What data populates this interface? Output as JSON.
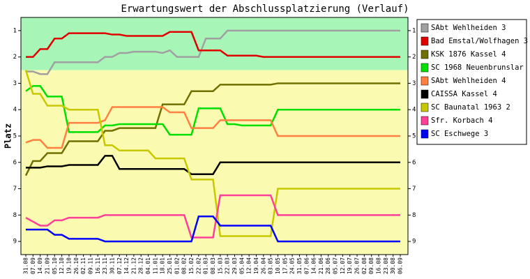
{
  "chart_data": {
    "type": "line",
    "title": "Erwartungswert der Abschlussplatzierung (Verlauf)",
    "y_label": "Platz",
    "categories": [
      "31.08",
      "07.09",
      "14.09",
      "21.09",
      "05.10",
      "12.10",
      "19.10",
      "26.10",
      "02.11",
      "09.11",
      "16.11",
      "23.11",
      "30.11",
      "07.12",
      "14.12",
      "21.12",
      "28.12",
      "04.01",
      "11.01",
      "18.01",
      "25.01",
      "01.02",
      "08.02",
      "15.02",
      "22.02",
      "01.03",
      "08.03",
      "15.03",
      "22.03",
      "29.03",
      "05.04",
      "12.04",
      "19.04",
      "26.04",
      "03.05",
      "10.05",
      "17.05",
      "24.05",
      "31.05",
      "07.06",
      "14.06",
      "21.06",
      "28.06",
      "05.07",
      "12.07",
      "19.07",
      "26.07",
      "02.08",
      "09.08",
      "16.08",
      "23.08",
      "30.08",
      "06.09"
    ],
    "ylim": [
      9.5,
      0.5
    ],
    "yticks": [
      1,
      2,
      3,
      4,
      5,
      6,
      7,
      8,
      9
    ],
    "bands": [
      {
        "from": 0.5,
        "to": 2.5,
        "color": "#a8f5b8"
      },
      {
        "from": 2.5,
        "to": 9.5,
        "color": "#fafab0"
      }
    ],
    "legend": "right",
    "series": [
      {
        "name": "SAbt Wehlheiden 3",
        "color": "#a0a0a0",
        "values": [
          2.55,
          2.55,
          2.65,
          2.65,
          2.2,
          2.2,
          2.2,
          2.2,
          2.2,
          2.2,
          2.2,
          2.0,
          2.0,
          1.85,
          1.85,
          1.8,
          1.8,
          1.8,
          1.8,
          1.85,
          1.75,
          2.0,
          2.0,
          2.0,
          2.0,
          1.3,
          1.3,
          1.3,
          1,
          1,
          1,
          1,
          1,
          1,
          1,
          1,
          1,
          1,
          1,
          1,
          1,
          1,
          1,
          1,
          1,
          1,
          1,
          1,
          1,
          1,
          1,
          1,
          1
        ]
      },
      {
        "name": "Bad Emstal/Wolfhagen 3",
        "color": "#e00000",
        "values": [
          2.0,
          2.0,
          1.7,
          1.7,
          1.3,
          1.3,
          1.1,
          1.1,
          1.1,
          1.1,
          1.1,
          1.1,
          1.15,
          1.15,
          1.2,
          1.2,
          1.2,
          1.2,
          1.2,
          1.2,
          1.05,
          1.05,
          1.05,
          1.05,
          1.75,
          1.75,
          1.75,
          1.75,
          1.95,
          1.95,
          1.95,
          1.95,
          1.95,
          2.0,
          2.0,
          2.0,
          2.0,
          2.0,
          2.0,
          2.0,
          2.0,
          2.0,
          2.0,
          2.0,
          2.0,
          2.0,
          2.0,
          2.0,
          2.0,
          2.0,
          2.0,
          2.0,
          2.0
        ]
      },
      {
        "name": "KSK 1876 Kassel 4",
        "color": "#707000",
        "values": [
          6.5,
          5.95,
          5.95,
          5.65,
          5.65,
          5.65,
          5.2,
          5.2,
          5.2,
          5.2,
          5.2,
          4.8,
          4.8,
          4.7,
          4.7,
          4.7,
          4.7,
          4.7,
          4.7,
          3.8,
          3.8,
          3.8,
          3.8,
          3.3,
          3.3,
          3.3,
          3.3,
          3.05,
          3.05,
          3.05,
          3.05,
          3.05,
          3.05,
          3.05,
          3.05,
          3.0,
          3.0,
          3.0,
          3.0,
          3.0,
          3.0,
          3.0,
          3.0,
          3.0,
          3.0,
          3.0,
          3.0,
          3.0,
          3.0,
          3.0,
          3.0,
          3.0,
          3.0
        ]
      },
      {
        "name": "SC 1968 Neuenbrunslar",
        "color": "#00e000",
        "values": [
          3.3,
          3.1,
          3.1,
          3.5,
          3.5,
          3.5,
          4.85,
          4.85,
          4.85,
          4.85,
          4.85,
          4.6,
          4.6,
          4.55,
          4.55,
          4.55,
          4.55,
          4.55,
          4.55,
          4.55,
          4.95,
          4.95,
          4.95,
          4.95,
          3.95,
          3.95,
          3.95,
          3.95,
          4.55,
          4.55,
          4.6,
          4.6,
          4.6,
          4.6,
          4.6,
          4.0,
          4.0,
          4.0,
          4.0,
          4.0,
          4.0,
          4.0,
          4.0,
          4.0,
          4.0,
          4.0,
          4.0,
          4.0,
          4.0,
          4.0,
          4.0,
          4.0,
          4.0
        ]
      },
      {
        "name": "SAbt Wehlheiden 4",
        "color": "#ff8040",
        "values": [
          5.25,
          5.15,
          5.15,
          5.45,
          5.45,
          5.45,
          4.5,
          4.5,
          4.5,
          4.5,
          4.5,
          4.4,
          3.9,
          3.9,
          3.9,
          3.9,
          3.9,
          3.9,
          3.9,
          3.9,
          4.1,
          4.1,
          4.1,
          4.7,
          4.7,
          4.7,
          4.7,
          4.4,
          4.4,
          4.4,
          4.4,
          4.4,
          4.4,
          4.4,
          4.4,
          5.0,
          5.0,
          5.0,
          5.0,
          5.0,
          5.0,
          5.0,
          5.0,
          5.0,
          5.0,
          5.0,
          5.0,
          5.0,
          5.0,
          5.0,
          5.0,
          5.0,
          5.0
        ]
      },
      {
        "name": "CAISSA Kassel 4",
        "color": "#000000",
        "values": [
          6.2,
          6.2,
          6.2,
          6.15,
          6.15,
          6.15,
          6.1,
          6.1,
          6.1,
          6.1,
          6.1,
          5.75,
          5.75,
          6.25,
          6.25,
          6.25,
          6.25,
          6.25,
          6.25,
          6.25,
          6.25,
          6.25,
          6.25,
          6.45,
          6.45,
          6.45,
          6.45,
          6.0,
          6.0,
          6.0,
          6.0,
          6.0,
          6.0,
          6.0,
          6.0,
          6.0,
          6.0,
          6.0,
          6.0,
          6.0,
          6.0,
          6.0,
          6.0,
          6.0,
          6.0,
          6.0,
          6.0,
          6.0,
          6.0,
          6.0,
          6.0,
          6.0,
          6.0
        ]
      },
      {
        "name": "SC Baunatal 1963 2",
        "color": "#c8c800",
        "values": [
          2.5,
          3.4,
          3.4,
          3.85,
          3.85,
          3.85,
          4.0,
          4.0,
          4.0,
          4.0,
          4.0,
          5.35,
          5.35,
          5.55,
          5.55,
          5.55,
          5.55,
          5.55,
          5.85,
          5.85,
          5.85,
          5.85,
          5.85,
          6.65,
          6.65,
          6.65,
          6.65,
          8.8,
          8.8,
          8.8,
          8.8,
          8.8,
          8.8,
          8.8,
          8.8,
          7.0,
          7.0,
          7.0,
          7.0,
          7.0,
          7.0,
          7.0,
          7.0,
          7.0,
          7.0,
          7.0,
          7.0,
          7.0,
          7.0,
          7.0,
          7.0,
          7.0,
          7.0
        ]
      },
      {
        "name": "Sfr. Korbach 4",
        "color": "#ff4099",
        "values": [
          8.1,
          8.25,
          8.4,
          8.4,
          8.2,
          8.2,
          8.1,
          8.1,
          8.1,
          8.1,
          8.1,
          8.0,
          8.0,
          8.0,
          8.0,
          8.0,
          8.0,
          8.0,
          8.0,
          8.0,
          8.0,
          8.0,
          8.0,
          8.85,
          8.85,
          8.85,
          8.85,
          7.25,
          7.25,
          7.25,
          7.25,
          7.25,
          7.25,
          7.25,
          7.25,
          8.0,
          8.0,
          8.0,
          8.0,
          8.0,
          8.0,
          8.0,
          8.0,
          8.0,
          8.0,
          8.0,
          8.0,
          8.0,
          8.0,
          8.0,
          8.0,
          8.0,
          8.0
        ]
      },
      {
        "name": "SC Eschwege 3",
        "color": "#0000ff",
        "values": [
          8.55,
          8.55,
          8.55,
          8.55,
          8.75,
          8.75,
          8.9,
          8.9,
          8.9,
          8.9,
          8.9,
          9.0,
          9.0,
          9.0,
          9.0,
          9.0,
          9.0,
          9.0,
          9.0,
          9.0,
          9.0,
          9.0,
          9.0,
          9.0,
          8.05,
          8.05,
          8.05,
          8.4,
          8.4,
          8.4,
          8.4,
          8.4,
          8.4,
          8.4,
          8.4,
          9.0,
          9.0,
          9.0,
          9.0,
          9.0,
          9.0,
          9.0,
          9.0,
          9.0,
          9.0,
          9.0,
          9.0,
          9.0,
          9.0,
          9.0,
          9.0,
          9.0,
          9.0
        ]
      }
    ]
  }
}
